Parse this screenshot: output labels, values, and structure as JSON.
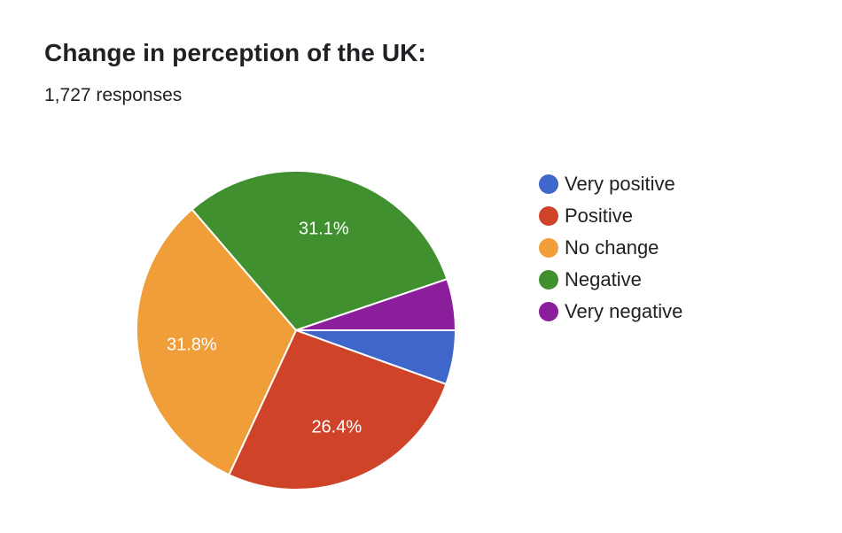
{
  "header": {
    "title": "Change in perception of the UK:",
    "responses": "1,727 responses"
  },
  "chart_data": {
    "type": "pie",
    "title": "Change in perception of the UK:",
    "subtitle": "1,727 responses",
    "legend_position": "right",
    "series": [
      {
        "name": "Very positive",
        "value": 5.5,
        "label": "",
        "color": "#3f66c9"
      },
      {
        "name": "Positive",
        "value": 26.4,
        "label": "26.4%",
        "color": "#cf4428"
      },
      {
        "name": "No change",
        "value": 31.8,
        "label": "31.8%",
        "color": "#f09e39"
      },
      {
        "name": "Negative",
        "value": 31.1,
        "label": "31.1%",
        "color": "#40902f"
      },
      {
        "name": "Very negative",
        "value": 5.2,
        "label": "",
        "color": "#8b1e9b"
      }
    ],
    "label_color": "#ffffff",
    "slice_border_color": "#ffffff"
  }
}
